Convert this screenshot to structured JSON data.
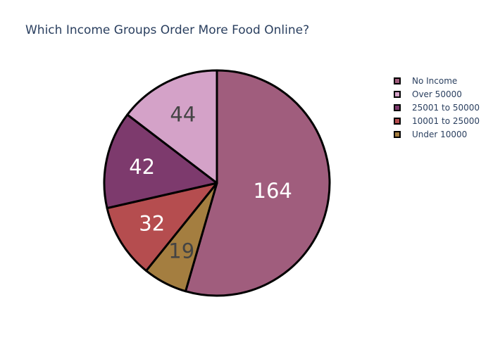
{
  "chart_data": {
    "type": "pie",
    "title": "Which Income Groups Order More Food Online?",
    "slices": [
      {
        "label": "No Income",
        "value": 164,
        "color": "#a05d7d",
        "text_color": "#ffffff"
      },
      {
        "label": "Under 10000",
        "value": 19,
        "color": "#a47e40",
        "text_color": "#444444"
      },
      {
        "label": "10001 to 25000",
        "value": 32,
        "color": "#b54d4f",
        "text_color": "#ffffff"
      },
      {
        "label": "25001 to 50000",
        "value": 42,
        "color": "#7d3a6d",
        "text_color": "#ffffff"
      },
      {
        "label": "Over 50000",
        "value": 44,
        "color": "#d4a2c8",
        "text_color": "#444444"
      }
    ],
    "legend_order": [
      "No Income",
      "Over 50000",
      "25001 to 50000",
      "10001 to 25000",
      "Under 10000"
    ],
    "legend_position": "top-right",
    "direction": "clockwise",
    "start": "top"
  }
}
